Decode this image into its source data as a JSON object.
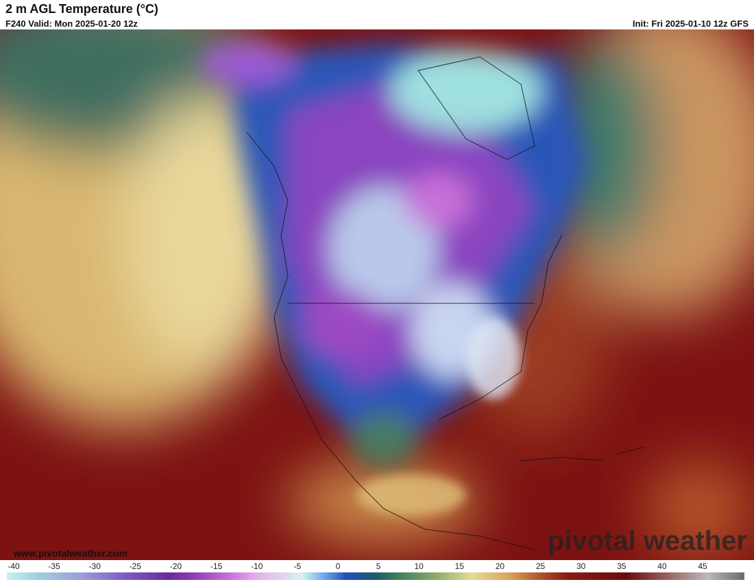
{
  "header": {
    "title": "2 m AGL Temperature (°C)",
    "valid": "F240 Valid: Mon 2025-01-20 12z",
    "init": "Init: Fri 2025-01-10 12z GFS"
  },
  "map": {
    "site": "www.pivotalweather.com",
    "logo": "pivotal weather"
  },
  "colorbar": {
    "ticks": [
      -40,
      -35,
      -30,
      -25,
      -20,
      -15,
      -10,
      -5,
      0,
      5,
      10,
      15,
      20,
      25,
      30,
      35,
      40,
      45
    ]
  }
}
